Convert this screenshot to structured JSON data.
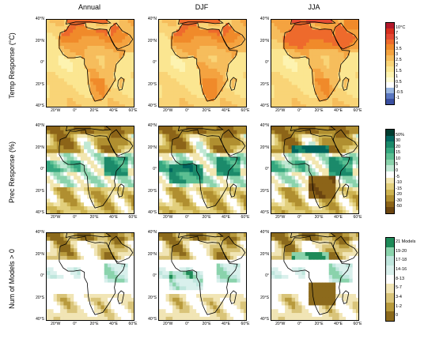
{
  "columns": [
    "Annual",
    "DJF",
    "JJA"
  ],
  "rows": [
    {
      "title": "Temp Response (°C)",
      "type": "temp"
    },
    {
      "title": "Prec Response (%)",
      "type": "prec"
    },
    {
      "title": "Num of Models > 0",
      "type": "models"
    }
  ],
  "lat_ticks": [
    "40°N",
    "20°N",
    "0°",
    "20°S",
    "40°S"
  ],
  "lon_ticks": [
    "20°W",
    "0°",
    "20°E",
    "40°E",
    "60°E"
  ],
  "map_extent": {
    "lon": [
      -30,
      60
    ],
    "lat": [
      -40,
      40
    ]
  },
  "temp_scale": {
    "labels": [
      "10°C",
      "7",
      "5",
      "4",
      "3.5",
      "3",
      "2.5",
      "2",
      "1.5",
      "1",
      "0.5",
      "0",
      "-0.5",
      "-1"
    ],
    "colors": [
      "#b2182b",
      "#d7301f",
      "#e34a33",
      "#ee6a2c",
      "#f08a2a",
      "#f4a340",
      "#f6bd5c",
      "#f9d477",
      "#fbe691",
      "#fdf3b0",
      "#fefbd2",
      "#ffffff",
      "#9ab6e0",
      "#5a77c0",
      "#3a4fa0"
    ]
  },
  "prec_scale": {
    "labels": [
      "50%",
      "30",
      "20",
      "15",
      "10",
      "5",
      "0",
      "-5",
      "-10",
      "-15",
      "-20",
      "-30",
      "-50"
    ],
    "colors": [
      "#003c30",
      "#01665e",
      "#1b8a6a",
      "#35a77f",
      "#5cbf92",
      "#8ad3ac",
      "#c0e8d3",
      "#ffffff",
      "#f2e6b0",
      "#e2cf7c",
      "#cdb350",
      "#b08f30",
      "#8c6418",
      "#6b4510"
    ]
  },
  "models_scale": {
    "labels": [
      "21 Models",
      "19-20",
      "17-18",
      "14-16",
      "8-13",
      "5-7",
      "3-4",
      "1-2",
      "0"
    ],
    "colors": [
      "#1e8a58",
      "#8ad3ac",
      "#bfe6dd",
      "#d9f0ec",
      "#ffffff",
      "#f1e5b5",
      "#d9c479",
      "#b89a3c",
      "#8c6a1c"
    ]
  }
}
